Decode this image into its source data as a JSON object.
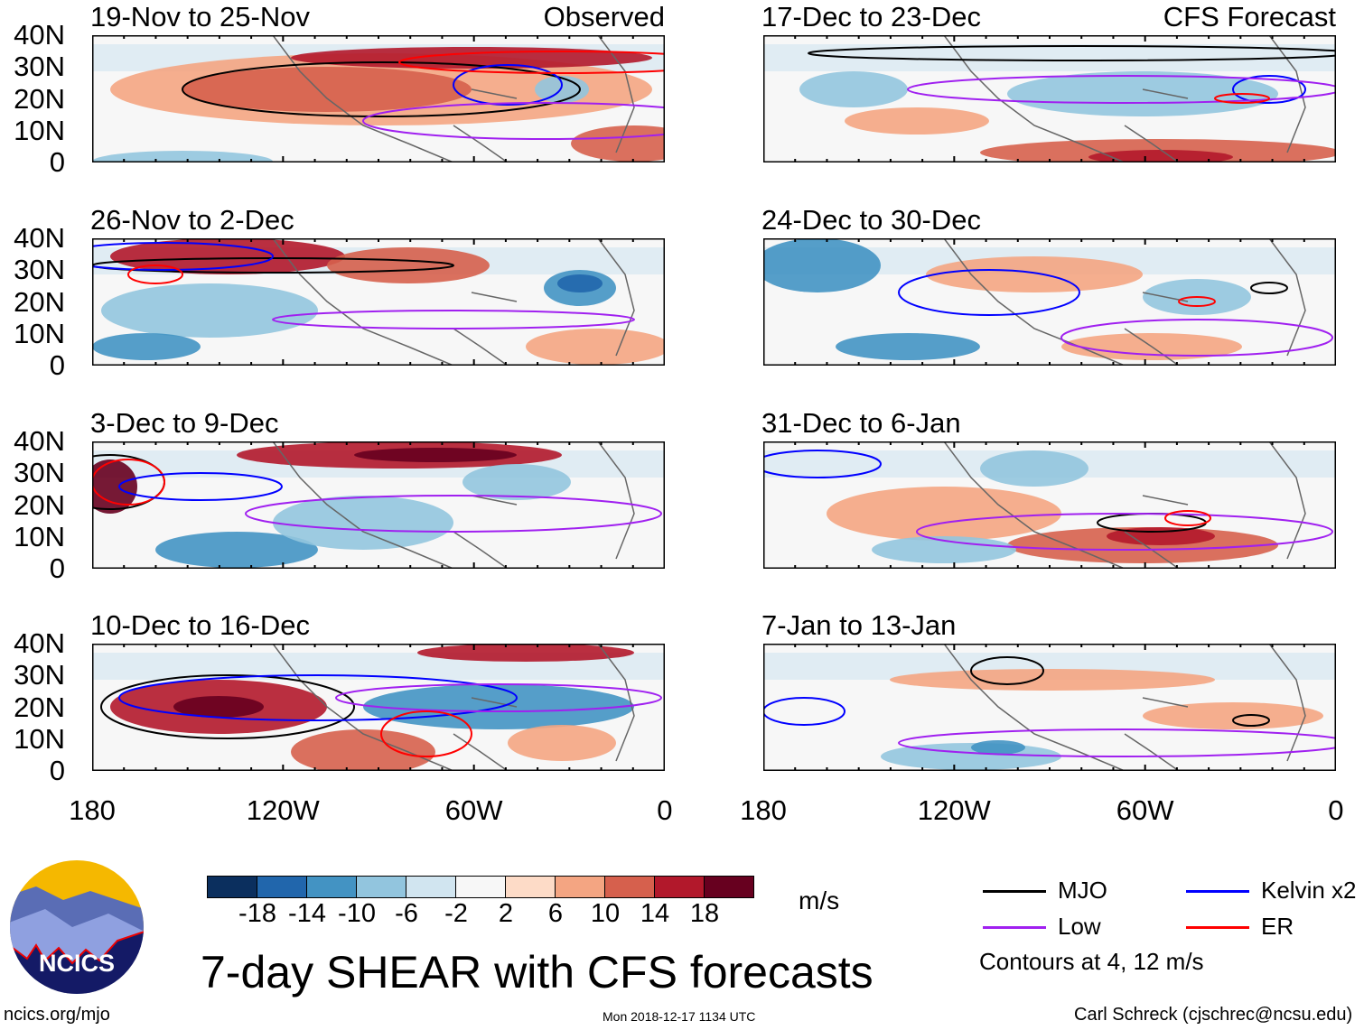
{
  "title": "7-day SHEAR with CFS forecasts",
  "observed_label": "Observed",
  "forecast_label": "CFS Forecast",
  "panels_observed": [
    "19-Nov to 25-Nov",
    "26-Nov to 2-Dec",
    "3-Dec to 9-Dec",
    "10-Dec to 16-Dec"
  ],
  "panels_forecast": [
    "17-Dec to 23-Dec",
    "24-Dec to 30-Dec",
    "31-Dec to 6-Jan",
    "7-Jan to 13-Jan"
  ],
  "lat_labels": [
    "40N",
    "30N",
    "20N",
    "10N",
    "0"
  ],
  "lon_labels": [
    "180",
    "120W",
    "60W",
    "0"
  ],
  "colorbar": {
    "labels": [
      "-18",
      "-14",
      "-10",
      "-6",
      "-2",
      "2",
      "6",
      "10",
      "14",
      "18"
    ],
    "colors": [
      "#0b2f5e",
      "#2166ac",
      "#4393c3",
      "#92c5de",
      "#d1e5f0",
      "#f7f7f7",
      "#fddbc7",
      "#f4a582",
      "#d6604d",
      "#b2182b",
      "#67001f"
    ],
    "units": "m/s"
  },
  "legend": {
    "items": [
      {
        "label": "MJO",
        "color": "#000000"
      },
      {
        "label": "Kelvin x2",
        "color": "#0000ff"
      },
      {
        "label": "Low",
        "color": "#a020f0"
      },
      {
        "label": "ER",
        "color": "#ff0000"
      }
    ],
    "note": "Contours at 4, 12 m/s"
  },
  "logo_text": "NCICS",
  "footer": {
    "url": "ncics.org/mjo",
    "timestamp": "Mon 2018-12-17 1134 UTC",
    "credit": "Carl Schreck (cjschrec@ncsu.edu)"
  }
}
